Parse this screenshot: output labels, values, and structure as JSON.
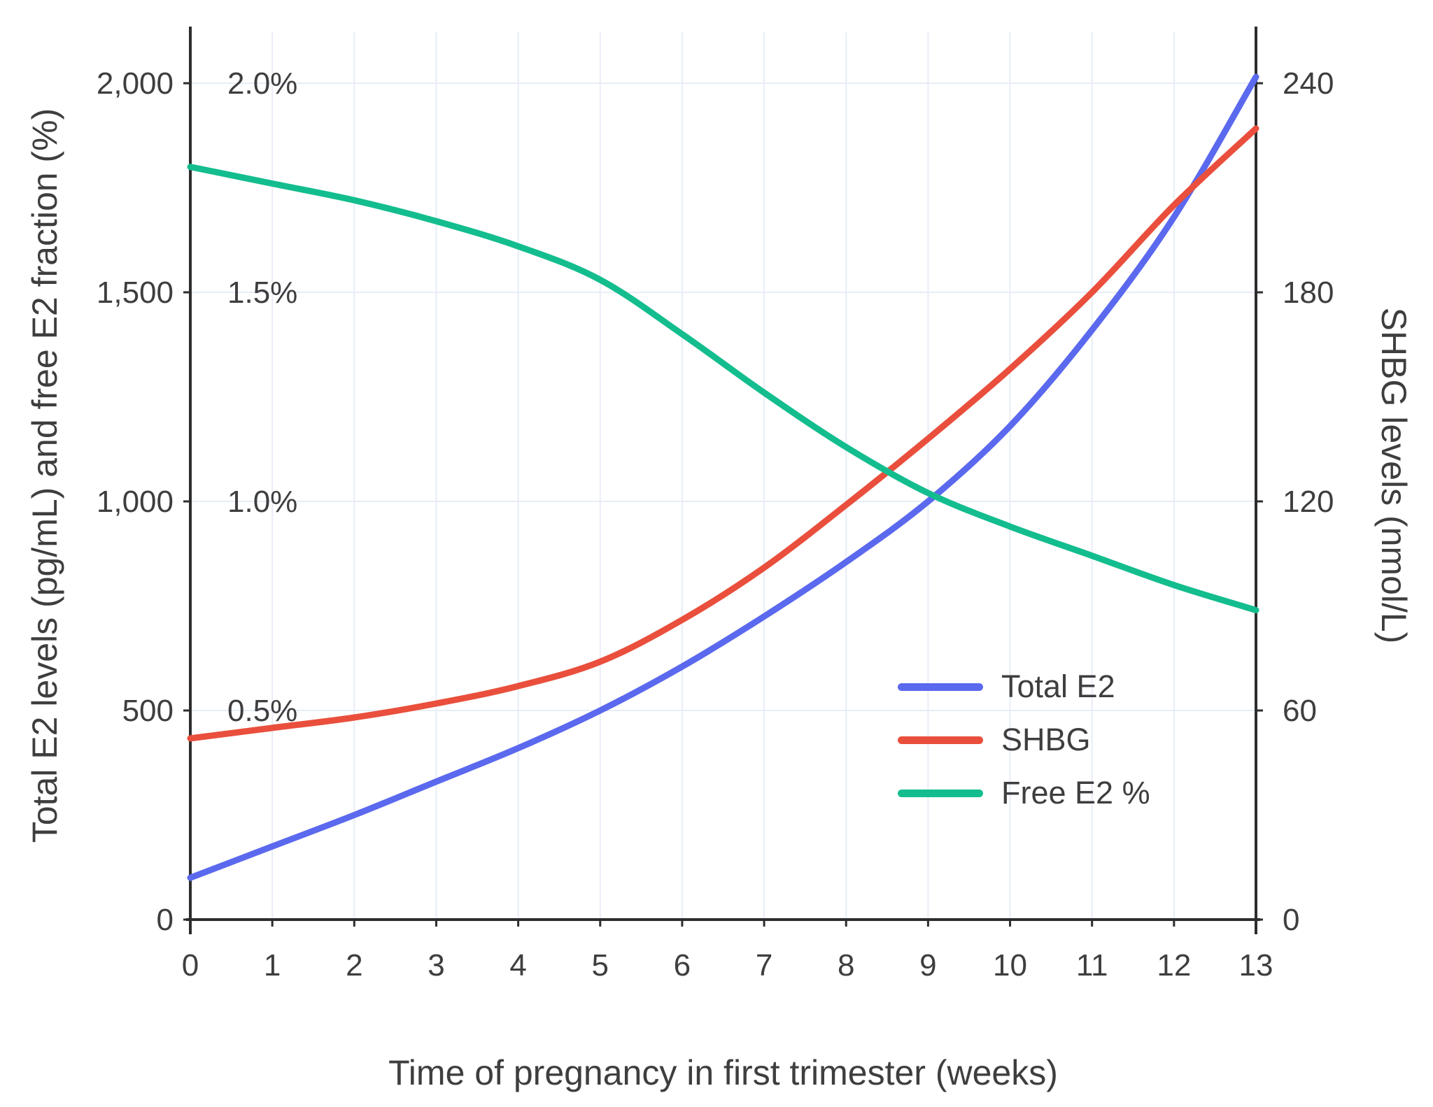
{
  "figure": {
    "background": "#ffffff",
    "text_color": "#3e3e3e",
    "axis_color": "#2d2d2d",
    "grid_color": "#e7edf7"
  },
  "chart_data": {
    "type": "line",
    "title": "",
    "xlabel": "Time of pregnancy in first trimester (weeks)",
    "ylabel_left": "Total E2 levels (pg/mL) and free E2 fraction (%)",
    "ylabel_right": "SHBG levels (nmol/L)",
    "x": [
      0,
      1,
      2,
      3,
      4,
      5,
      6,
      7,
      8,
      9,
      10,
      11,
      12,
      13
    ],
    "xlim": [
      0,
      13
    ],
    "x_tick_labels": [
      "0",
      "1",
      "2",
      "3",
      "4",
      "5",
      "6",
      "7",
      "8",
      "9",
      "10",
      "11",
      "12",
      "13"
    ],
    "left_axis": {
      "range": [
        0,
        2120
      ],
      "ticks": [
        {
          "value": 0,
          "label": "0",
          "pct_label": ""
        },
        {
          "value": 500,
          "label": "500",
          "pct_label": "0.5%"
        },
        {
          "value": 1000,
          "label": "1,000",
          "pct_label": "1.0%"
        },
        {
          "value": 1500,
          "label": "1,500",
          "pct_label": "1.5%"
        },
        {
          "value": 2000,
          "label": "2,000",
          "pct_label": "2.0%"
        }
      ]
    },
    "right_axis": {
      "range": [
        0,
        254
      ],
      "ticks": [
        {
          "value": 0,
          "label": "0"
        },
        {
          "value": 60,
          "label": "60"
        },
        {
          "value": 120,
          "label": "120"
        },
        {
          "value": 180,
          "label": "180"
        },
        {
          "value": 240,
          "label": "240"
        }
      ]
    },
    "grid": true,
    "legend_position": "inside-lower-right",
    "percent_axis_mapping": "free E2 % plotted on left axis where 0.5% aligns with 500",
    "series": [
      {
        "name": "Total E2",
        "unit": "pg/mL",
        "axis": "left",
        "color": "#5b69ee",
        "values": [
          100,
          175,
          250,
          330,
          410,
          500,
          605,
          725,
          855,
          1000,
          1180,
          1410,
          1680,
          2015
        ]
      },
      {
        "name": "SHBG",
        "unit": "nmol/L",
        "axis": "right",
        "color": "#e94f3c",
        "values": [
          52,
          55,
          58,
          62,
          67,
          74,
          86,
          101,
          119,
          138,
          158,
          180,
          205,
          227
        ]
      },
      {
        "name": "Free E2 %",
        "unit": "%",
        "axis": "percent",
        "color": "#13bd8e",
        "values": [
          1.8,
          1.76,
          1.72,
          1.67,
          1.61,
          1.53,
          1.4,
          1.26,
          1.13,
          1.02,
          0.94,
          0.87,
          0.8,
          0.74
        ]
      }
    ]
  }
}
